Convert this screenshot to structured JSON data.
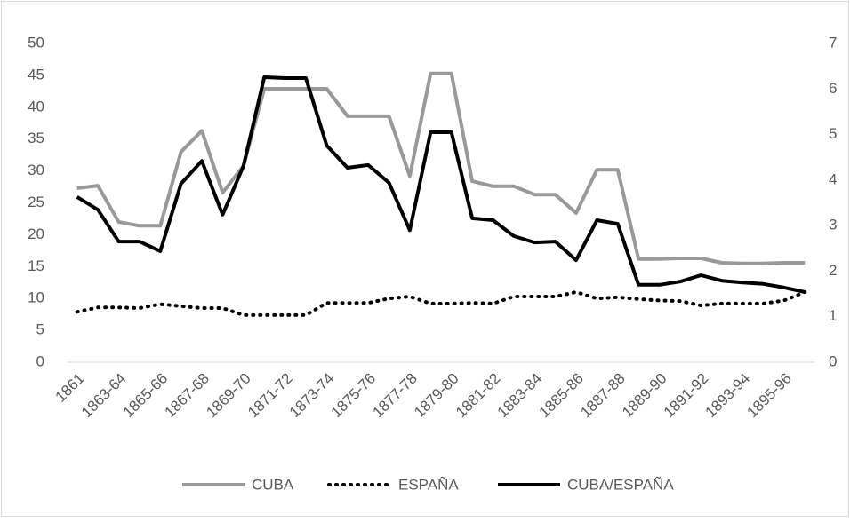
{
  "chart_data": {
    "type": "line",
    "categories": [
      "1861",
      null,
      "1863-64",
      null,
      "1865-66",
      null,
      "1867-68",
      null,
      "1869-70",
      null,
      "1871-72",
      null,
      "1873-74",
      null,
      "1875-76",
      null,
      "1877-78",
      null,
      "1879-80",
      null,
      "1881-82",
      null,
      "1883-84",
      null,
      "1885-86",
      null,
      "1887-88",
      null,
      "1889-90",
      null,
      "1891-92",
      null,
      "1893-94",
      null,
      "1895-96",
      null
    ],
    "series": [
      {
        "name": "CUBA",
        "color": "#999999",
        "style": "solid",
        "values": [
          27.3,
          27.7,
          22,
          21.4,
          21.4,
          33,
          36.3,
          26.6,
          30.8,
          42.9,
          42.9,
          42.9,
          42.9,
          38.6,
          38.6,
          38.6,
          29.2,
          45.3,
          45.3,
          28.4,
          27.6,
          27.6,
          26.3,
          26.3,
          23.4,
          30.2,
          30.2,
          16.2,
          16.2,
          16.3,
          16.3,
          15.6,
          15.5,
          15.5,
          15.6,
          15.6
        ]
      },
      {
        "name": "ESPAÑA",
        "color": "#000000",
        "style": "dotted",
        "values": [
          7.9,
          8.6,
          8.6,
          8.5,
          9.1,
          8.8,
          8.5,
          8.5,
          7.4,
          7.4,
          7.4,
          7.4,
          9.3,
          9.3,
          9.3,
          10,
          10.3,
          9.2,
          9.2,
          9.3,
          9.2,
          10.3,
          10.3,
          10.3,
          11,
          10,
          10.2,
          9.9,
          9.7,
          9.6,
          8.9,
          9.2,
          9.2,
          9.2,
          9.7,
          11
        ]
      },
      {
        "name": "CUBA/ESPAÑA",
        "color": "#000000",
        "style": "solid",
        "axis": "y2",
        "values": [
          3.63,
          3.35,
          2.65,
          2.65,
          2.44,
          3.92,
          4.42,
          3.24,
          4.31,
          6.26,
          6.24,
          6.24,
          4.76,
          4.27,
          4.33,
          3.94,
          2.9,
          5.05,
          5.05,
          3.16,
          3.12,
          2.77,
          2.63,
          2.65,
          2.24,
          3.12,
          3.04,
          1.7,
          1.7,
          1.77,
          1.91,
          1.79,
          1.75,
          1.72,
          1.64,
          1.54
        ]
      }
    ],
    "ylim": [
      0,
      50
    ],
    "yticks": [
      0,
      5,
      10,
      15,
      20,
      25,
      30,
      35,
      40,
      45,
      50
    ],
    "y2lim": [
      0,
      7
    ],
    "y2ticks": [
      0,
      1,
      2,
      3,
      4,
      5,
      6,
      7
    ],
    "grid": false,
    "legend": "bottom"
  }
}
